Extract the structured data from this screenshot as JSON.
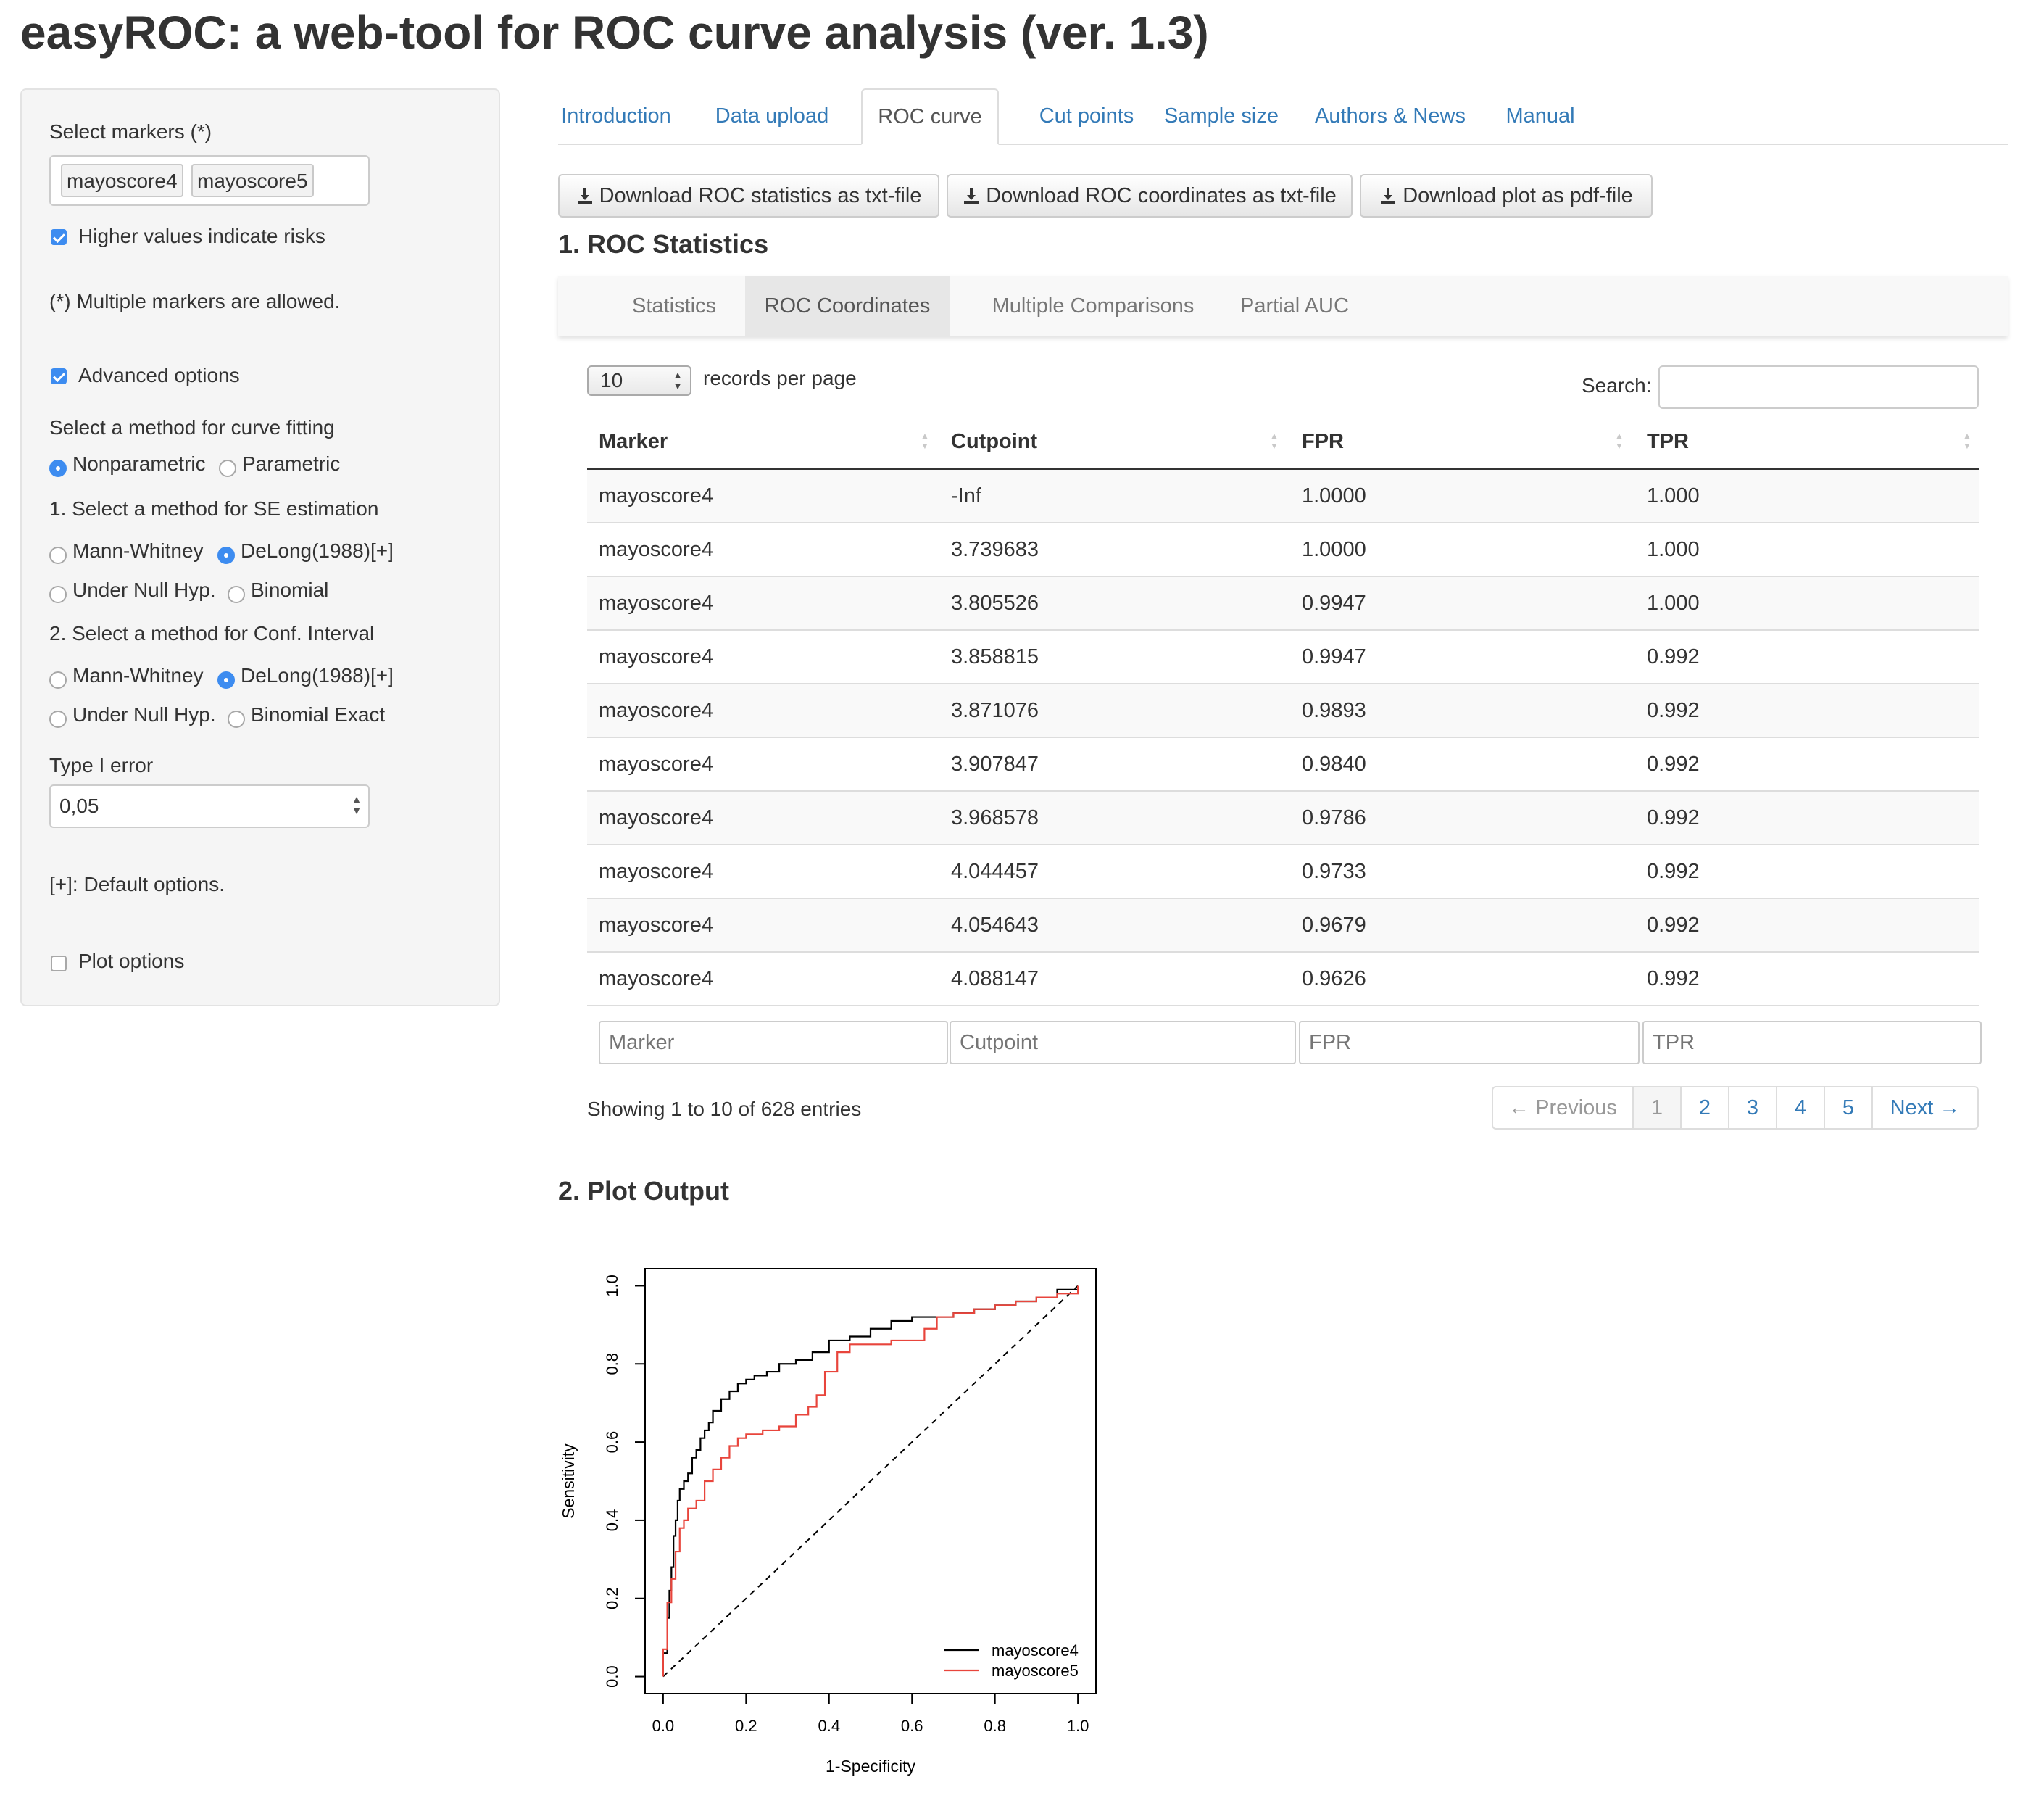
{
  "app": {
    "title": "easyROC: a web-tool for ROC curve analysis (ver. 1.3)"
  },
  "sidebar": {
    "select_markers_label": "Select markers (*)",
    "selected_markers": [
      "mayoscore4",
      "mayoscore5"
    ],
    "higher_values_label": "Higher values indicate risks",
    "higher_values_checked": true,
    "multiple_markers_note": "(*) Multiple markers are allowed.",
    "advanced_options_label": "Advanced options",
    "advanced_options_checked": true,
    "curve_method_label": "Select a method for curve fitting",
    "curve_methods": [
      "Nonparametric",
      "Parametric"
    ],
    "curve_method_selected": "Nonparametric",
    "se_method_label": "1. Select a method for SE estimation",
    "se_methods": [
      "Mann-Whitney",
      "DeLong(1988)[+]",
      "Under Null Hyp.",
      "Binomial"
    ],
    "se_method_selected": "DeLong(1988)[+]",
    "ci_method_label": "2. Select a method for Conf. Interval",
    "ci_methods": [
      "Mann-Whitney",
      "DeLong(1988)[+]",
      "Under Null Hyp.",
      "Binomial Exact"
    ],
    "ci_method_selected": "DeLong(1988)[+]",
    "type1_error_label": "Type I error",
    "type1_error_value": "0,05",
    "default_note": "[+]: Default options.",
    "plot_options_label": "Plot options",
    "plot_options_checked": false
  },
  "tabs": [
    "Introduction",
    "Data upload",
    "ROC curve",
    "Cut points",
    "Sample size",
    "Authors & News",
    "Manual"
  ],
  "active_tab": "ROC curve",
  "downloads": {
    "stats": "Download ROC statistics as txt-file",
    "coords": "Download ROC coordinates as txt-file",
    "plot": "Download plot as pdf-file",
    "icon": "download-icon"
  },
  "section1_title": "1. ROC Statistics",
  "subtabs": [
    "Statistics",
    "ROC Coordinates",
    "Multiple Comparisons",
    "Partial AUC"
  ],
  "active_subtab": "ROC Coordinates",
  "table_controls": {
    "page_size": "10",
    "records_per_page": "records per page",
    "search_label": "Search:",
    "search_value": ""
  },
  "table": {
    "columns": [
      "Marker",
      "Cutpoint",
      "FPR",
      "TPR"
    ],
    "rows": [
      [
        "mayoscore4",
        "-Inf",
        "1.0000",
        "1.000"
      ],
      [
        "mayoscore4",
        "3.739683",
        "1.0000",
        "1.000"
      ],
      [
        "mayoscore4",
        "3.805526",
        "0.9947",
        "1.000"
      ],
      [
        "mayoscore4",
        "3.858815",
        "0.9947",
        "0.992"
      ],
      [
        "mayoscore4",
        "3.871076",
        "0.9893",
        "0.992"
      ],
      [
        "mayoscore4",
        "3.907847",
        "0.9840",
        "0.992"
      ],
      [
        "mayoscore4",
        "3.968578",
        "0.9786",
        "0.992"
      ],
      [
        "mayoscore4",
        "4.044457",
        "0.9733",
        "0.992"
      ],
      [
        "mayoscore4",
        "4.054643",
        "0.9679",
        "0.992"
      ],
      [
        "mayoscore4",
        "4.088147",
        "0.9626",
        "0.992"
      ]
    ],
    "filter_placeholders": [
      "Marker",
      "Cutpoint",
      "FPR",
      "TPR"
    ],
    "info": "Showing 1 to 10 of 628 entries"
  },
  "pagination": {
    "prev": "← Previous",
    "pages": [
      "1",
      "2",
      "3",
      "4",
      "5"
    ],
    "current": "1",
    "next": "Next →"
  },
  "section2_title": "2. Plot Output",
  "chart_data": {
    "type": "line",
    "title": "",
    "xlabel": "1-Specificity",
    "ylabel": "Sensitivity",
    "xlim": [
      0,
      1
    ],
    "ylim": [
      0,
      1
    ],
    "xticks": [
      "0.0",
      "0.2",
      "0.4",
      "0.6",
      "0.8",
      "1.0"
    ],
    "yticks": [
      "0.0",
      "0.2",
      "0.4",
      "0.6",
      "0.8",
      "1.0"
    ],
    "legend_position": "bottom-right",
    "reference_line": "diagonal-dashed",
    "series": [
      {
        "name": "mayoscore4",
        "color": "#000000",
        "points": [
          [
            0,
            0
          ],
          [
            0.0,
            0.06
          ],
          [
            0.01,
            0.15
          ],
          [
            0.015,
            0.22
          ],
          [
            0.02,
            0.28
          ],
          [
            0.025,
            0.36
          ],
          [
            0.03,
            0.4
          ],
          [
            0.035,
            0.45
          ],
          [
            0.04,
            0.48
          ],
          [
            0.05,
            0.5
          ],
          [
            0.06,
            0.52
          ],
          [
            0.07,
            0.56
          ],
          [
            0.08,
            0.58
          ],
          [
            0.09,
            0.61
          ],
          [
            0.1,
            0.63
          ],
          [
            0.11,
            0.65
          ],
          [
            0.12,
            0.68
          ],
          [
            0.14,
            0.71
          ],
          [
            0.16,
            0.73
          ],
          [
            0.18,
            0.75
          ],
          [
            0.2,
            0.76
          ],
          [
            0.22,
            0.77
          ],
          [
            0.25,
            0.78
          ],
          [
            0.28,
            0.8
          ],
          [
            0.32,
            0.81
          ],
          [
            0.36,
            0.83
          ],
          [
            0.4,
            0.86
          ],
          [
            0.45,
            0.87
          ],
          [
            0.5,
            0.89
          ],
          [
            0.55,
            0.91
          ],
          [
            0.6,
            0.92
          ],
          [
            0.65,
            0.92
          ],
          [
            0.7,
            0.93
          ],
          [
            0.75,
            0.94
          ],
          [
            0.8,
            0.95
          ],
          [
            0.85,
            0.96
          ],
          [
            0.9,
            0.97
          ],
          [
            0.95,
            0.99
          ],
          [
            1.0,
            1.0
          ]
        ]
      },
      {
        "name": "mayoscore5",
        "color": "#e8453c",
        "points": [
          [
            0,
            0
          ],
          [
            0.0,
            0.07
          ],
          [
            0.01,
            0.19
          ],
          [
            0.02,
            0.25
          ],
          [
            0.03,
            0.32
          ],
          [
            0.04,
            0.38
          ],
          [
            0.05,
            0.4
          ],
          [
            0.06,
            0.43
          ],
          [
            0.08,
            0.45
          ],
          [
            0.1,
            0.5
          ],
          [
            0.12,
            0.53
          ],
          [
            0.14,
            0.56
          ],
          [
            0.16,
            0.59
          ],
          [
            0.18,
            0.61
          ],
          [
            0.2,
            0.62
          ],
          [
            0.24,
            0.63
          ],
          [
            0.28,
            0.64
          ],
          [
            0.32,
            0.67
          ],
          [
            0.35,
            0.69
          ],
          [
            0.37,
            0.72
          ],
          [
            0.39,
            0.78
          ],
          [
            0.42,
            0.83
          ],
          [
            0.45,
            0.85
          ],
          [
            0.5,
            0.85
          ],
          [
            0.55,
            0.86
          ],
          [
            0.6,
            0.86
          ],
          [
            0.63,
            0.89
          ],
          [
            0.66,
            0.92
          ],
          [
            0.7,
            0.93
          ],
          [
            0.75,
            0.94
          ],
          [
            0.8,
            0.95
          ],
          [
            0.85,
            0.96
          ],
          [
            0.9,
            0.97
          ],
          [
            0.95,
            0.98
          ],
          [
            1.0,
            1.0
          ]
        ]
      }
    ]
  }
}
